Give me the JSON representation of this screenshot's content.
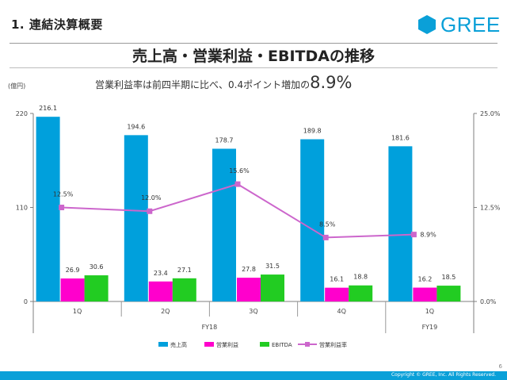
{
  "header": {
    "section": "1. 連結決算概要",
    "logo_text": "GREE",
    "title": "売上高・営業利益・EBITDAの推移",
    "unit": "(億円)",
    "subtitle_prefix": "営業利益率は前四半期に比べ、0.4ポイント増加の",
    "subtitle_value": "8.9%"
  },
  "footer": {
    "copyright": "Copyright © GREE, Inc. All Rights Reserved.",
    "page_number": "6"
  },
  "colors": {
    "brand": "#0aa0d8",
    "sales": "#00a0dc",
    "operating_profit": "#ff00cc",
    "ebitda": "#22cc22",
    "margin_line": "#cc66cc"
  },
  "chart_data": {
    "type": "bar",
    "categories": [
      "1Q",
      "2Q",
      "3Q",
      "4Q",
      "1Q"
    ],
    "groups": [
      {
        "label": "FY18",
        "categories": [
          "1Q",
          "2Q",
          "3Q",
          "4Q"
        ]
      },
      {
        "label": "FY19",
        "categories": [
          "1Q"
        ]
      }
    ],
    "series": [
      {
        "name": "売上高",
        "type": "bar",
        "axis": "left",
        "values": [
          216.1,
          194.6,
          178.7,
          189.8,
          181.6
        ],
        "labels": [
          "216.1",
          "194.6",
          "178.7",
          "189.8",
          "181.6"
        ]
      },
      {
        "name": "営業利益",
        "type": "bar",
        "axis": "left",
        "values": [
          26.9,
          23.4,
          27.8,
          16.1,
          16.2
        ],
        "labels": [
          "26.9",
          "23.4",
          "27.8",
          "16.1",
          "16.2"
        ]
      },
      {
        "name": "EBITDA",
        "type": "bar",
        "axis": "left",
        "values": [
          30.6,
          27.1,
          31.5,
          18.8,
          18.5
        ],
        "labels": [
          "30.6",
          "27.1",
          "31.5",
          "18.8",
          "18.5"
        ]
      },
      {
        "name": "営業利益率",
        "type": "line",
        "axis": "right",
        "values": [
          12.5,
          12.0,
          15.6,
          8.5,
          8.9
        ],
        "labels": [
          "12.5%",
          "12.0%",
          "15.6%",
          "8.5%",
          "8.9%"
        ]
      }
    ],
    "y_left": {
      "range": [
        0,
        220
      ],
      "ticks": [
        0,
        110,
        220
      ],
      "tick_labels": [
        "0",
        "110",
        "220"
      ]
    },
    "y_right": {
      "range": [
        0,
        25
      ],
      "ticks": [
        0,
        12.5,
        25
      ],
      "tick_labels": [
        "0.0%",
        "12.5%",
        "25.0%"
      ]
    },
    "grid": false,
    "legend_position": "bottom"
  }
}
